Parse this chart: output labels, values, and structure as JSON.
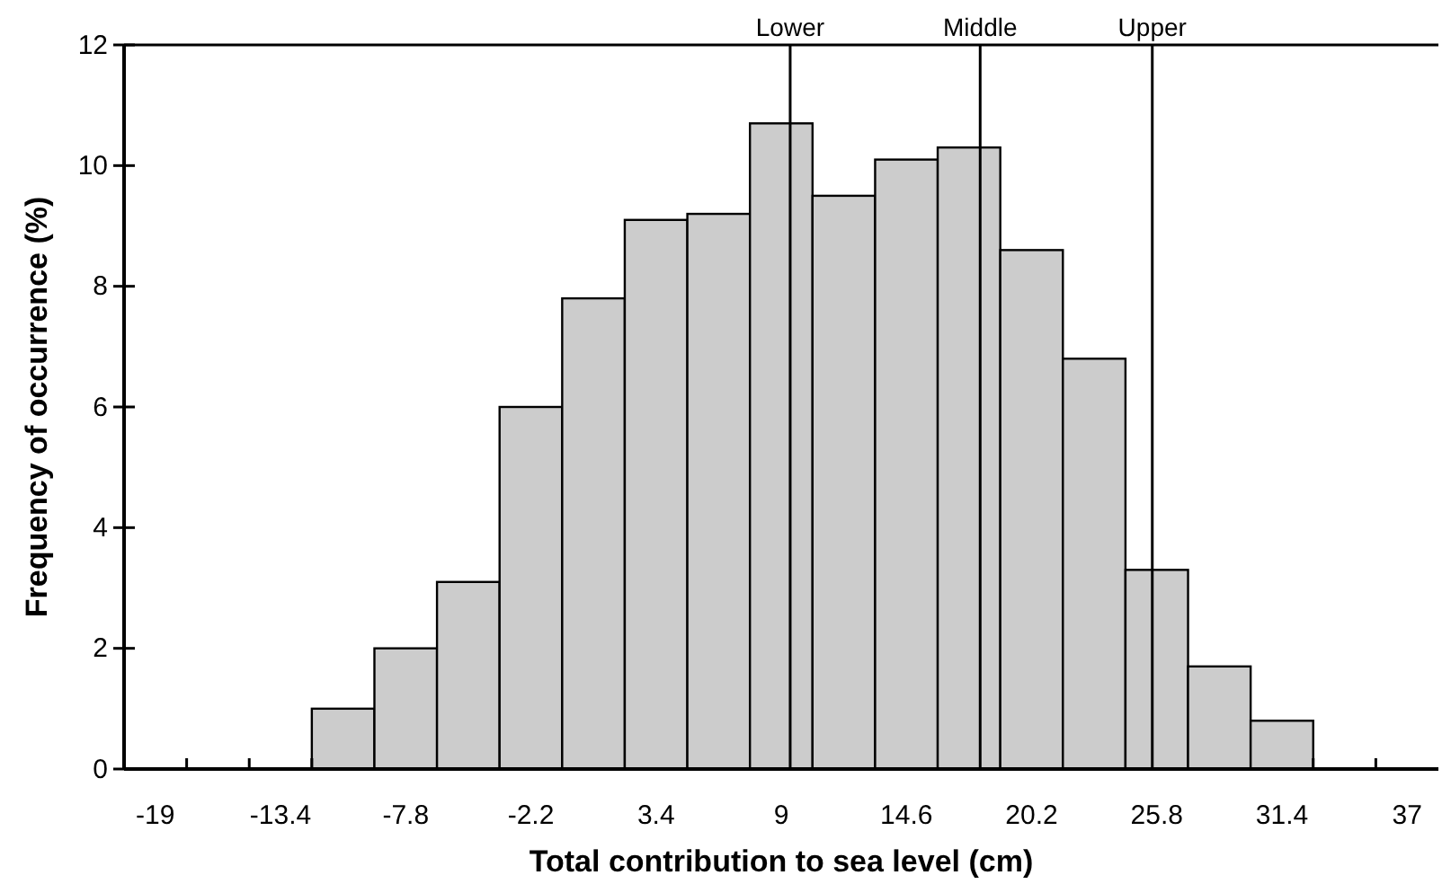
{
  "chart_data": {
    "type": "histogram",
    "xlabel": "Total contribution to sea level (cm)",
    "ylabel": "Frequency of occurrence (%)",
    "bins": [
      -20.4,
      -17.6,
      -14.8,
      -12,
      -9.2,
      -6.4,
      -3.6,
      -0.8,
      2,
      4.8,
      7.6,
      10.4,
      13.2,
      16,
      18.8,
      21.6,
      24.4,
      27.2,
      30,
      32.8,
      35.6,
      38.4
    ],
    "values": [
      0,
      0,
      0,
      1.0,
      2.0,
      3.1,
      6.0,
      7.8,
      9.1,
      9.2,
      10.7,
      9.5,
      10.1,
      10.3,
      8.6,
      6.8,
      3.3,
      1.7,
      0.8,
      0,
      0
    ],
    "color": "#cccccc",
    "xlim": [
      -20.4,
      38.4
    ],
    "xticks": [
      -19,
      -13.4,
      -7.8,
      -2.2,
      3.4,
      9,
      14.6,
      20.2,
      25.8,
      31.4,
      37,
      {
        "value": -17.6,
        "label": null
      },
      {
        "value": -14.8,
        "label": null
      },
      {
        "value": -12,
        "label": null
      },
      {
        "value": 32.8,
        "label": null
      },
      {
        "value": 35.6,
        "label": null
      }
    ],
    "ylim": [
      0,
      12
    ],
    "yticks": [
      0,
      2,
      4,
      6,
      8,
      10,
      12
    ],
    "ref_lines": [
      {
        "axis": "x",
        "value": 9.4,
        "label": "Lower"
      },
      {
        "axis": "x",
        "value": 17.9,
        "label": "Middle"
      },
      {
        "axis": "x",
        "value": 25.6,
        "label": "Upper"
      }
    ]
  }
}
